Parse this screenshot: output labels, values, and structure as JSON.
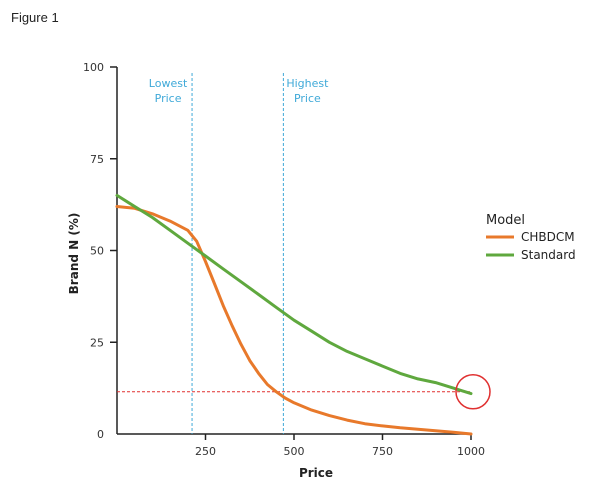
{
  "figure_label": "Figure 1",
  "chart_data": {
    "type": "line",
    "xlabel": "Price",
    "ylabel": "Brand N (%)",
    "xlim": [
      0,
      1000
    ],
    "ylim": [
      0,
      100
    ],
    "x_ticks": [
      250,
      500,
      750,
      1000
    ],
    "y_ticks": [
      0,
      25,
      50,
      75,
      100
    ],
    "grid": false,
    "legend": {
      "title": "Model",
      "position": "right"
    },
    "series": [
      {
        "name": "CHBDCM",
        "color": "#e8792b",
        "x": [
          0,
          50,
          100,
          150,
          200,
          225,
          250,
          275,
          300,
          325,
          350,
          375,
          400,
          425,
          450,
          475,
          500,
          550,
          600,
          650,
          700,
          750,
          800,
          850,
          900,
          950,
          1000
        ],
        "y": [
          62,
          61.5,
          60,
          58,
          55.5,
          52.5,
          47,
          41,
          35,
          29.5,
          24.5,
          20,
          16.5,
          13.5,
          11.5,
          9.8,
          8.5,
          6.5,
          5,
          3.8,
          2.8,
          2.2,
          1.7,
          1.3,
          0.9,
          0.5,
          0
        ]
      },
      {
        "name": "Standard",
        "color": "#5fa83e",
        "x": [
          0,
          50,
          100,
          150,
          200,
          250,
          300,
          350,
          400,
          450,
          500,
          550,
          600,
          650,
          700,
          750,
          800,
          850,
          900,
          950,
          1000
        ],
        "y": [
          65,
          62,
          59,
          55.5,
          52,
          48.5,
          45,
          41.5,
          38,
          34.5,
          31,
          28,
          25,
          22.5,
          20.5,
          18.5,
          16.5,
          15,
          14,
          12.5,
          11
        ]
      }
    ],
    "annotations": {
      "vlines": [
        {
          "x": 212,
          "label": [
            "Lowest",
            "Price"
          ],
          "color": "#3fa9d8"
        },
        {
          "x": 470,
          "label": [
            "Highest",
            "Price"
          ],
          "color": "#3fa9d8"
        }
      ],
      "hline": {
        "y": 11.5,
        "x_end": 1000,
        "color": "#e03030"
      },
      "circle": {
        "x": 1000,
        "y": 11.5,
        "color": "#e03030"
      }
    }
  }
}
